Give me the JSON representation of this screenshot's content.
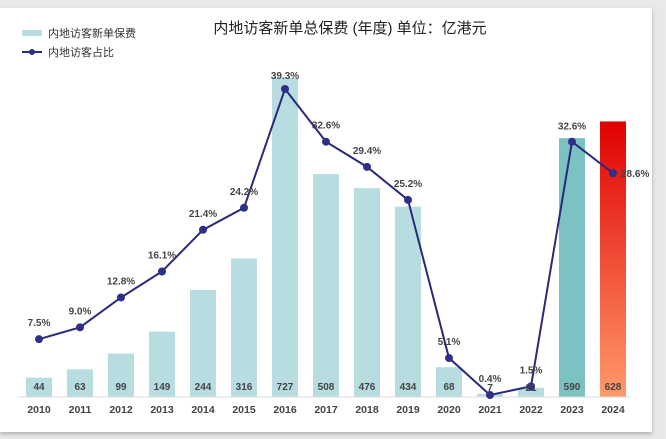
{
  "chart_data": {
    "type": "bar+line",
    "title": "内地访客新单总保费 (年度)   单位：亿港元",
    "categories": [
      "2010",
      "2011",
      "2012",
      "2013",
      "2014",
      "2015",
      "2016",
      "2017",
      "2018",
      "2019",
      "2020",
      "2021",
      "2022",
      "2023",
      "2024"
    ],
    "series": [
      {
        "name": "内地访客新单保费",
        "type": "bar",
        "values": [
          44,
          63,
          99,
          149,
          244,
          316,
          727,
          508,
          476,
          434,
          68,
          7,
          21,
          590,
          628
        ],
        "labels": [
          "44",
          "63",
          "99",
          "149",
          "244",
          "316",
          "727",
          "508",
          "476",
          "434",
          "68",
          "7",
          "21",
          "590",
          "628"
        ]
      },
      {
        "name": "内地访客占比",
        "type": "line",
        "values": [
          7.5,
          9.0,
          12.8,
          16.1,
          21.4,
          24.2,
          39.3,
          32.6,
          29.4,
          25.2,
          5.1,
          0.4,
          1.5,
          32.6,
          28.6
        ],
        "labels": [
          "7.5%",
          "9.0%",
          "12.8%",
          "16.1%",
          "21.4%",
          "24.2%",
          "39.3%",
          "32.6%",
          "29.4%",
          "25.2%",
          "5.1%",
          "0.4%",
          "1.5%",
          "32.6%",
          "28.6%"
        ]
      }
    ],
    "legend": "top-left",
    "grid": false,
    "colors": {
      "bar": "#b7dde0",
      "bar_2023": "#7cc2c2",
      "bar_2024_top": "#e00000",
      "bar_2024_bottom": "#ff9a6a",
      "line": "#2a2a7a",
      "marker": "#2e2f86"
    }
  }
}
